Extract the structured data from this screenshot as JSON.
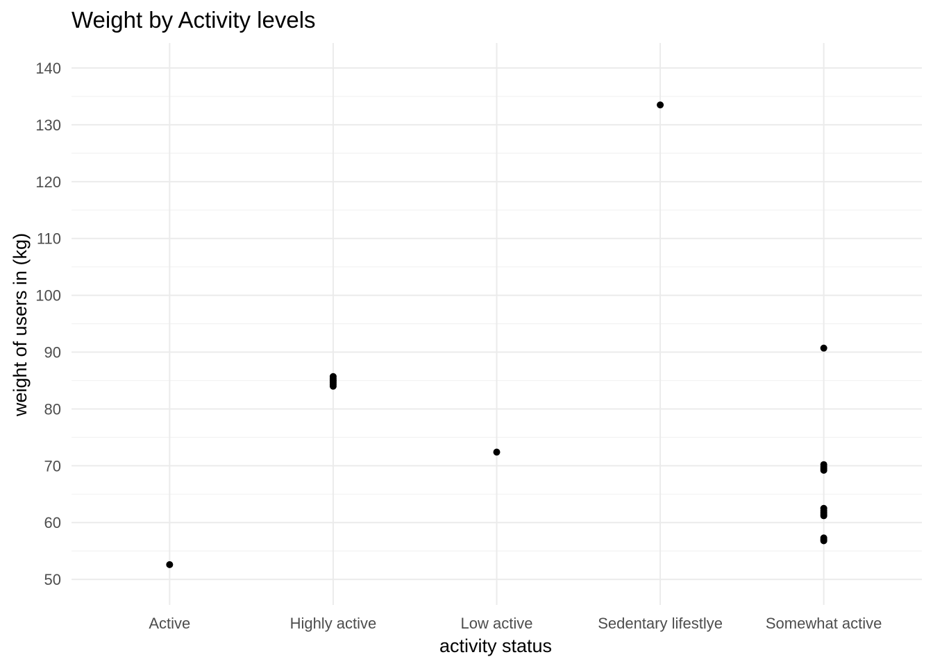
{
  "chart_data": {
    "type": "scatter",
    "title": "Weight by Activity levels",
    "xlabel": "activity status",
    "ylabel": "weight of users in (kg)",
    "categories": [
      "Active",
      "Highly active",
      "Low active",
      "Sedentary lifestlye",
      "Somewhat active"
    ],
    "ylim": [
      45.5,
      144.4
    ],
    "yticks": [
      50,
      60,
      70,
      80,
      90,
      100,
      110,
      120,
      130,
      140
    ],
    "grid": true,
    "legend": "none",
    "colors": {
      "point": "#000000",
      "grid": "#ebebeb"
    },
    "points": [
      {
        "x": "Active",
        "y": 52.6
      },
      {
        "x": "Highly active",
        "y": 84.0
      },
      {
        "x": "Highly active",
        "y": 84.3
      },
      {
        "x": "Highly active",
        "y": 84.6
      },
      {
        "x": "Highly active",
        "y": 84.9
      },
      {
        "x": "Highly active",
        "y": 85.1
      },
      {
        "x": "Highly active",
        "y": 85.4
      },
      {
        "x": "Highly active",
        "y": 85.7
      },
      {
        "x": "Low active",
        "y": 72.4
      },
      {
        "x": "Sedentary lifestlye",
        "y": 133.5
      },
      {
        "x": "Somewhat active",
        "y": 90.7
      },
      {
        "x": "Somewhat active",
        "y": 70.2
      },
      {
        "x": "Somewhat active",
        "y": 69.8
      },
      {
        "x": "Somewhat active",
        "y": 69.5
      },
      {
        "x": "Somewhat active",
        "y": 69.2
      },
      {
        "x": "Somewhat active",
        "y": 62.5
      },
      {
        "x": "Somewhat active",
        "y": 62.1
      },
      {
        "x": "Somewhat active",
        "y": 61.8
      },
      {
        "x": "Somewhat active",
        "y": 61.5
      },
      {
        "x": "Somewhat active",
        "y": 61.2
      },
      {
        "x": "Somewhat active",
        "y": 57.3
      },
      {
        "x": "Somewhat active",
        "y": 57.0
      },
      {
        "x": "Somewhat active",
        "y": 56.8
      }
    ]
  }
}
